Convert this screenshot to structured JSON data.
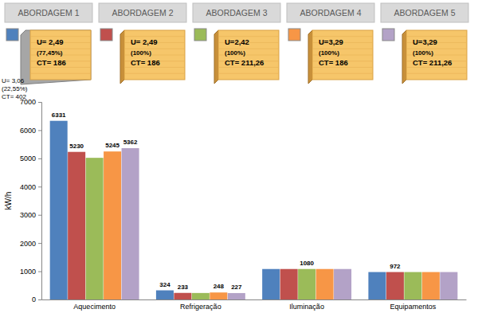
{
  "chart_data": {
    "type": "bar",
    "y_label": "kW/h",
    "categories": [
      "Aquecimento",
      "Refrigeração",
      "Iluminação",
      "Equipamentos"
    ],
    "series": [
      {
        "name": "ABORDAGEM 1",
        "color": "#4f81bd",
        "values": [
          6331,
          324,
          1080,
          972
        ],
        "value_labels": [
          "6331",
          "324",
          null,
          null
        ]
      },
      {
        "name": "ABORDAGEM 2",
        "color": "#c0504d",
        "values": [
          5230,
          233,
          1080,
          972
        ],
        "value_labels": [
          "5230",
          "233",
          null,
          "972"
        ]
      },
      {
        "name": "ABORDAGEM 3",
        "color": "#9bbb59",
        "values": [
          5020,
          230,
          1080,
          972
        ],
        "value_labels": [
          null,
          null,
          "1080",
          null
        ]
      },
      {
        "name": "ABORDAGEM 4",
        "color": "#f79646",
        "values": [
          5245,
          248,
          1080,
          972
        ],
        "value_labels": [
          "5245",
          "248",
          null,
          null
        ]
      },
      {
        "name": "ABORDAGEM 5",
        "color": "#b3a2c7",
        "values": [
          5362,
          227,
          1080,
          972
        ],
        "value_labels": [
          "5362",
          "227",
          null,
          null
        ]
      }
    ],
    "ylim": [
      0,
      7000
    ],
    "yticks": [
      0,
      1000,
      2000,
      3000,
      4000,
      5000,
      6000,
      7000
    ],
    "grid": false,
    "data_labels": true
  },
  "approaches": [
    {
      "lines": [
        "U= 2,49",
        "(77,45%)",
        "CT= 186"
      ],
      "side_lines": [
        "U= 3,06",
        "(22,55%)",
        "CT= 402"
      ]
    },
    {
      "lines": [
        "U= 2,49",
        "(100%)",
        "CT= 186"
      ]
    },
    {
      "lines": [
        "U=2,42",
        "(100%)",
        "CT= 211,26"
      ]
    },
    {
      "lines": [
        "U=3,29",
        "(100%)",
        "CT= 186"
      ]
    },
    {
      "lines": [
        "U=3,29",
        "(100%)",
        "CT= 211,26"
      ]
    }
  ]
}
